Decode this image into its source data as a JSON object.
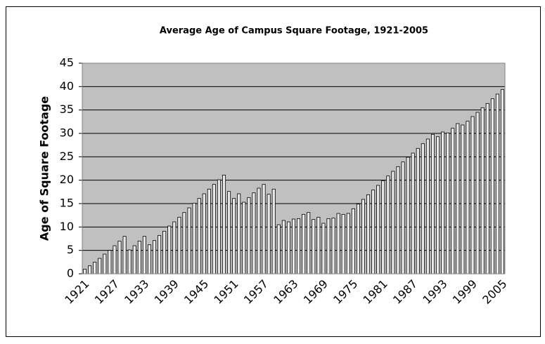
{
  "chart_data": {
    "type": "bar",
    "title": "Average Age of Campus Square Footage, 1921-2005",
    "y_label": "Age of Square Footage",
    "categories": [
      "1921",
      null,
      null,
      null,
      null,
      null,
      "1927",
      null,
      null,
      null,
      null,
      null,
      "1933",
      null,
      null,
      null,
      null,
      null,
      "1939",
      null,
      null,
      null,
      null,
      null,
      "1945",
      null,
      null,
      null,
      null,
      null,
      "1951",
      null,
      null,
      null,
      null,
      null,
      "1957",
      null,
      null,
      null,
      null,
      null,
      "1963",
      null,
      null,
      null,
      null,
      null,
      "1969",
      null,
      null,
      null,
      null,
      null,
      "1975",
      null,
      null,
      null,
      null,
      null,
      "1981",
      null,
      null,
      null,
      null,
      null,
      "1987",
      null,
      null,
      null,
      null,
      null,
      "1993",
      null,
      null,
      null,
      null,
      null,
      "1999",
      null,
      null,
      null,
      null,
      null,
      "2005"
    ],
    "values": [
      1,
      1.7,
      2.5,
      3.3,
      4.2,
      5,
      6,
      7,
      8,
      5.1,
      6,
      7,
      8,
      6.2,
      7.1,
      8.2,
      9.1,
      10.2,
      11.1,
      12.1,
      13.1,
      14.1,
      15.1,
      16.1,
      17.1,
      18.1,
      19.1,
      20.1,
      21.1,
      17.6,
      16.1,
      17.1,
      15.3,
      16.3,
      17.3,
      18.3,
      19.1,
      17,
      18.1,
      10.5,
      11.4,
      11.1,
      11.7,
      11.8,
      12.7,
      13.1,
      11.6,
      12.1,
      10.8,
      11.8,
      11.9,
      12.9,
      12.7,
      12.9,
      13.9,
      14.9,
      15.9,
      16.9,
      17.9,
      18.9,
      19.9,
      20.9,
      21.9,
      22.9,
      23.9,
      24.9,
      25.8,
      26.8,
      27.8,
      28.8,
      29.8,
      29.3,
      30.3,
      30.1,
      31.1,
      32.1,
      31.8,
      32.6,
      33.6,
      34.5,
      35.5,
      36.4,
      37.4,
      38.4,
      39.4
    ],
    "color": "#e8e8e8",
    "ylim": [
      0,
      45
    ],
    "yticks": [
      0,
      5,
      10,
      15,
      20,
      25,
      30,
      35,
      40,
      45
    ],
    "grid": true
  }
}
